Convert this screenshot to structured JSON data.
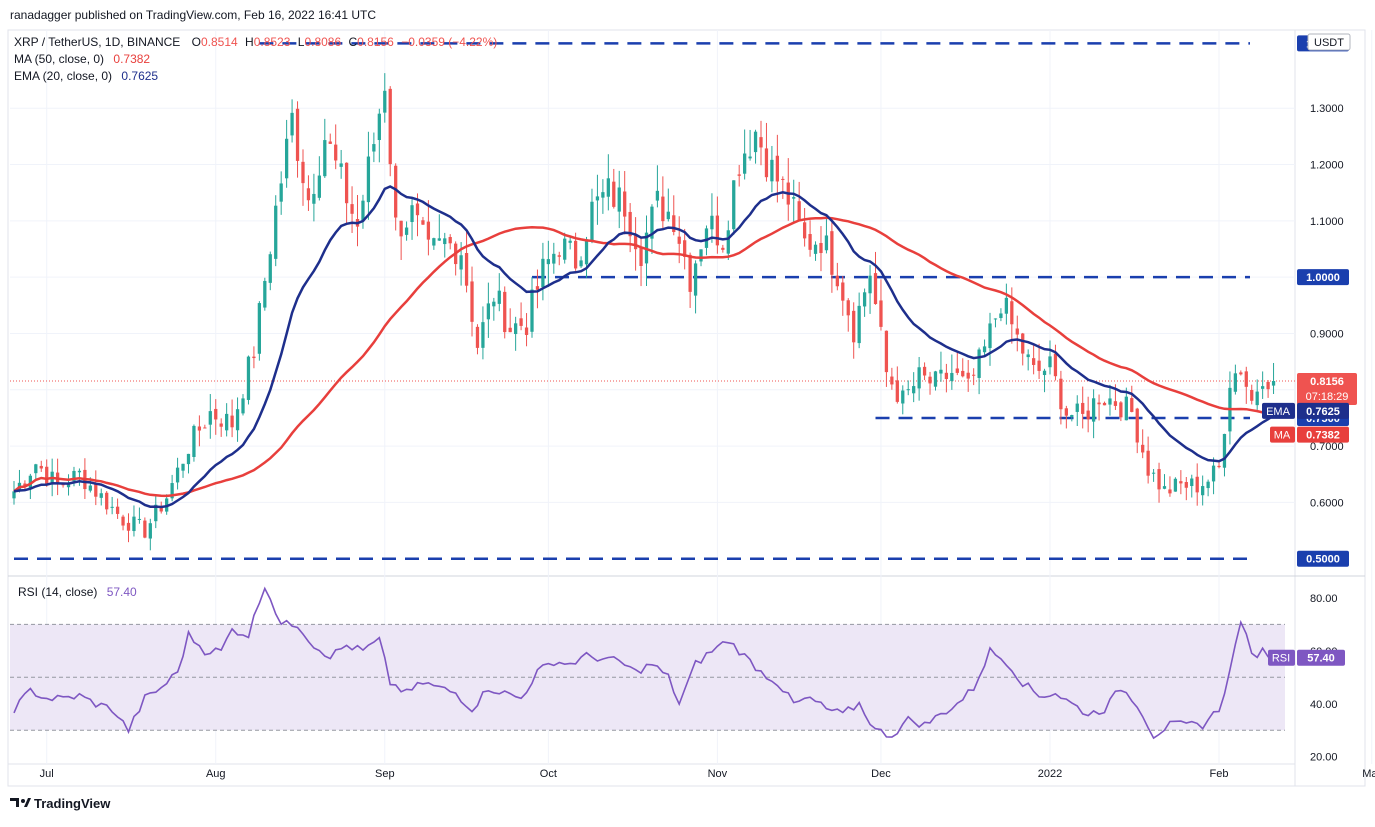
{
  "header": {
    "publisher_line": "ranadagger published on TradingView.com, Feb 16, 2022 16:41 UTC",
    "symbol": "XRP / TetherUS, 1D, BINANCE",
    "ohlc": {
      "o_label": "O",
      "o": "0.8514",
      "h_label": "H",
      "h": "0.8523",
      "l_label": "L",
      "l": "0.8086",
      "c_label": "C",
      "c": "0.8156",
      "change": "−0.0359 (−4.22%)"
    },
    "ma_legend": {
      "label": "MA (50, close, 0)",
      "value": "0.7382"
    },
    "ema_legend": {
      "label": "EMA (20, close, 0)",
      "value": "0.7625"
    },
    "currency_badge": "USDT"
  },
  "footer": {
    "brand": "TradingView"
  },
  "colors": {
    "up": "#26a69a",
    "down": "#ef5350",
    "ema": "#1e2f8c",
    "ma": "#e83f3c",
    "level": "#1a3fae",
    "rsi": "#7e57c2",
    "rsi_band": "#ede7f6"
  },
  "chart_data": [
    {
      "type": "candlestick",
      "title": "XRP / TetherUS, 1D, BINANCE",
      "y_range": [
        0.48,
        1.43
      ],
      "y_ticks": [
        0.6,
        0.7,
        0.8,
        0.9,
        1.0,
        1.1,
        1.2,
        1.3
      ],
      "y_tick_labels": [
        "0.6000",
        "0.7000",
        "0.8000",
        "0.9000",
        "1.0000",
        "1.1000",
        "1.2000",
        "1.3000"
      ],
      "x_labels": [
        {
          "label": "Jul",
          "day": 6
        },
        {
          "label": "Aug",
          "day": 37
        },
        {
          "label": "Sep",
          "day": 68
        },
        {
          "label": "Oct",
          "day": 98
        },
        {
          "label": "Nov",
          "day": 129
        },
        {
          "label": "Dec",
          "day": 159
        },
        {
          "label": "2022",
          "day": 190
        },
        {
          "label": "Feb",
          "day": 221
        },
        {
          "label": "Mar",
          "day": 249
        }
      ],
      "horizontal_levels": [
        {
          "value": 1.4151,
          "label": "1.4151",
          "x_start_day": 45
        },
        {
          "value": 1.0,
          "label": "1.0000",
          "x_start_day": 95
        },
        {
          "value": 0.75,
          "label": "0.7500",
          "x_start_day": 158
        },
        {
          "value": 0.5,
          "label": "0.5000",
          "x_start_day": 0
        }
      ],
      "last_price": {
        "value": 0.8156,
        "label": "0.8156",
        "countdown": "07:18:29"
      },
      "ema_tag": {
        "name": "EMA",
        "value": 0.7625,
        "label": "0.7625"
      },
      "ma_tag": {
        "name": "MA",
        "value": 0.7382,
        "label": "0.7382"
      },
      "close_anchors": [
        [
          0,
          0.62
        ],
        [
          4,
          0.67
        ],
        [
          8,
          0.63
        ],
        [
          12,
          0.65
        ],
        [
          16,
          0.61
        ],
        [
          20,
          0.57
        ],
        [
          24,
          0.55
        ],
        [
          28,
          0.61
        ],
        [
          32,
          0.7
        ],
        [
          36,
          0.76
        ],
        [
          40,
          0.74
        ],
        [
          44,
          0.87
        ],
        [
          48,
          1.12
        ],
        [
          51,
          1.28
        ],
        [
          54,
          1.14
        ],
        [
          57,
          1.25
        ],
        [
          60,
          1.17
        ],
        [
          63,
          1.09
        ],
        [
          66,
          1.24
        ],
        [
          68,
          1.35
        ],
        [
          70,
          1.09
        ],
        [
          73,
          1.11
        ],
        [
          76,
          1.04
        ],
        [
          79,
          1.06
        ],
        [
          82,
          1.05
        ],
        [
          85,
          0.88
        ],
        [
          88,
          0.97
        ],
        [
          91,
          0.91
        ],
        [
          94,
          0.92
        ],
        [
          97,
          1.01
        ],
        [
          100,
          1.06
        ],
        [
          103,
          1.03
        ],
        [
          106,
          1.12
        ],
        [
          109,
          1.15
        ],
        [
          112,
          1.13
        ],
        [
          115,
          1.05
        ],
        [
          118,
          1.13
        ],
        [
          121,
          1.11
        ],
        [
          124,
          1.0
        ],
        [
          127,
          1.1
        ],
        [
          130,
          1.07
        ],
        [
          133,
          1.21
        ],
        [
          136,
          1.26
        ],
        [
          139,
          1.19
        ],
        [
          142,
          1.14
        ],
        [
          145,
          1.06
        ],
        [
          148,
          1.07
        ],
        [
          151,
          1.01
        ],
        [
          154,
          0.91
        ],
        [
          157,
          1.01
        ],
        [
          160,
          0.83
        ],
        [
          163,
          0.78
        ],
        [
          166,
          0.82
        ],
        [
          169,
          0.81
        ],
        [
          172,
          0.83
        ],
        [
          175,
          0.8
        ],
        [
          178,
          0.87
        ],
        [
          181,
          0.96
        ],
        [
          184,
          0.89
        ],
        [
          187,
          0.83
        ],
        [
          190,
          0.84
        ],
        [
          193,
          0.76
        ],
        [
          196,
          0.75
        ],
        [
          199,
          0.79
        ],
        [
          202,
          0.78
        ],
        [
          205,
          0.76
        ],
        [
          208,
          0.66
        ],
        [
          211,
          0.62
        ],
        [
          214,
          0.63
        ],
        [
          217,
          0.63
        ],
        [
          219,
          0.64
        ],
        [
          221,
          0.66
        ],
        [
          223,
          0.82
        ],
        [
          225,
          0.84
        ],
        [
          227,
          0.78
        ],
        [
          229,
          0.83
        ],
        [
          231,
          0.8156
        ]
      ],
      "rsi": {
        "label": "RSI (14, close)",
        "value": "57.40",
        "range": [
          18,
          86
        ],
        "overbought": 70,
        "oversold": 30,
        "ticks": [
          20,
          40,
          60,
          80
        ],
        "tick_labels": [
          "20.00",
          "40.00",
          "60.00",
          "80.00"
        ],
        "anchors": [
          [
            0,
            38
          ],
          [
            3,
            45
          ],
          [
            6,
            42
          ],
          [
            9,
            42
          ],
          [
            12,
            43
          ],
          [
            15,
            40
          ],
          [
            18,
            38
          ],
          [
            21,
            30
          ],
          [
            24,
            42
          ],
          [
            27,
            46
          ],
          [
            30,
            52
          ],
          [
            32,
            66
          ],
          [
            35,
            60
          ],
          [
            38,
            60
          ],
          [
            40,
            68
          ],
          [
            43,
            66
          ],
          [
            46,
            85
          ],
          [
            49,
            70
          ],
          [
            52,
            70
          ],
          [
            55,
            62
          ],
          [
            58,
            58
          ],
          [
            61,
            62
          ],
          [
            64,
            60
          ],
          [
            67,
            64
          ],
          [
            69,
            48
          ],
          [
            72,
            44
          ],
          [
            75,
            48
          ],
          [
            78,
            46
          ],
          [
            81,
            44
          ],
          [
            84,
            38
          ],
          [
            87,
            46
          ],
          [
            90,
            44
          ],
          [
            93,
            42
          ],
          [
            96,
            52
          ],
          [
            99,
            56
          ],
          [
            102,
            55
          ],
          [
            105,
            58
          ],
          [
            108,
            57
          ],
          [
            111,
            56
          ],
          [
            114,
            52
          ],
          [
            117,
            55
          ],
          [
            120,
            50
          ],
          [
            122,
            40
          ],
          [
            125,
            55
          ],
          [
            128,
            60
          ],
          [
            131,
            64
          ],
          [
            134,
            58
          ],
          [
            137,
            52
          ],
          [
            140,
            48
          ],
          [
            143,
            40
          ],
          [
            146,
            42
          ],
          [
            149,
            38
          ],
          [
            152,
            36
          ],
          [
            155,
            40
          ],
          [
            158,
            30
          ],
          [
            161,
            28
          ],
          [
            164,
            34
          ],
          [
            167,
            32
          ],
          [
            170,
            36
          ],
          [
            173,
            40
          ],
          [
            176,
            46
          ],
          [
            179,
            60
          ],
          [
            182,
            56
          ],
          [
            185,
            48
          ],
          [
            188,
            43
          ],
          [
            191,
            44
          ],
          [
            194,
            40
          ],
          [
            197,
            36
          ],
          [
            200,
            38
          ],
          [
            203,
            46
          ],
          [
            206,
            40
          ],
          [
            209,
            28
          ],
          [
            212,
            32
          ],
          [
            215,
            32
          ],
          [
            218,
            32
          ],
          [
            221,
            38
          ],
          [
            223,
            52
          ],
          [
            225,
            72
          ],
          [
            227,
            58
          ],
          [
            229,
            60
          ],
          [
            231,
            57.4
          ]
        ]
      }
    }
  ]
}
